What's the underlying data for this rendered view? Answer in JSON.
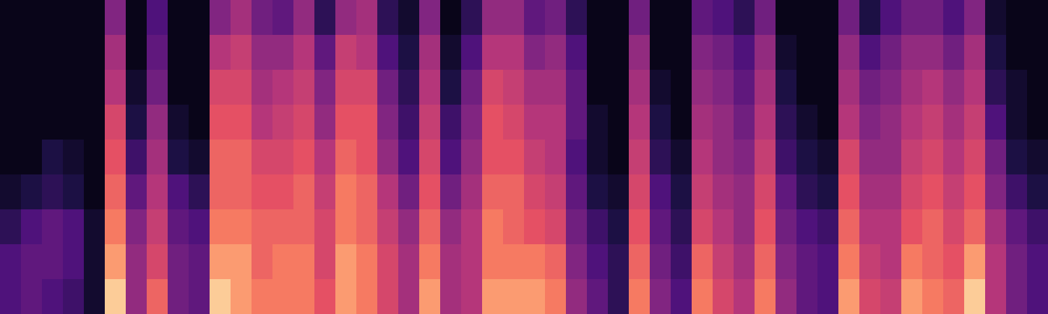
{
  "chart_data": {
    "type": "heatmap",
    "tick_labels": false,
    "zlim": [
      0,
      1
    ],
    "cells": [
      [
        0.05,
        0.05,
        0.05,
        0.05,
        0.05,
        0.1,
        0.2,
        0.3,
        0.3
      ],
      [
        0.05,
        0.05,
        0.05,
        0.05,
        0.05,
        0.15,
        0.3,
        0.35,
        0.35
      ],
      [
        0.05,
        0.05,
        0.05,
        0.05,
        0.15,
        0.2,
        0.35,
        0.35,
        0.3
      ],
      [
        0.05,
        0.05,
        0.05,
        0.05,
        0.1,
        0.15,
        0.3,
        0.3,
        0.25
      ],
      [
        0.05,
        0.05,
        0.05,
        0.05,
        0.05,
        0.05,
        0.1,
        0.1,
        0.1
      ],
      [
        0.45,
        0.55,
        0.6,
        0.7,
        0.75,
        0.8,
        0.85,
        0.9,
        0.95
      ],
      [
        0.05,
        0.05,
        0.1,
        0.15,
        0.25,
        0.35,
        0.45,
        0.5,
        0.5
      ],
      [
        0.3,
        0.35,
        0.4,
        0.5,
        0.55,
        0.6,
        0.65,
        0.7,
        0.8
      ],
      [
        0.05,
        0.05,
        0.05,
        0.1,
        0.15,
        0.3,
        0.35,
        0.4,
        0.4
      ],
      [
        0.05,
        0.05,
        0.05,
        0.05,
        0.1,
        0.2,
        0.3,
        0.35,
        0.35
      ],
      [
        0.45,
        0.6,
        0.7,
        0.75,
        0.8,
        0.8,
        0.85,
        0.9,
        0.95
      ],
      [
        0.55,
        0.65,
        0.7,
        0.75,
        0.8,
        0.8,
        0.85,
        0.9,
        0.9
      ],
      [
        0.4,
        0.5,
        0.55,
        0.6,
        0.7,
        0.75,
        0.8,
        0.8,
        0.85
      ],
      [
        0.35,
        0.5,
        0.6,
        0.65,
        0.7,
        0.75,
        0.8,
        0.85,
        0.85
      ],
      [
        0.5,
        0.6,
        0.65,
        0.7,
        0.75,
        0.8,
        0.8,
        0.85,
        0.85
      ],
      [
        0.2,
        0.35,
        0.45,
        0.5,
        0.6,
        0.65,
        0.7,
        0.7,
        0.75
      ],
      [
        0.5,
        0.65,
        0.7,
        0.75,
        0.8,
        0.85,
        0.85,
        0.9,
        0.9
      ],
      [
        0.55,
        0.6,
        0.7,
        0.75,
        0.75,
        0.8,
        0.8,
        0.85,
        0.85
      ],
      [
        0.2,
        0.3,
        0.4,
        0.45,
        0.5,
        0.6,
        0.65,
        0.7,
        0.7
      ],
      [
        0.1,
        0.15,
        0.2,
        0.25,
        0.3,
        0.4,
        0.5,
        0.55,
        0.55
      ],
      [
        0.45,
        0.55,
        0.6,
        0.65,
        0.7,
        0.75,
        0.8,
        0.85,
        0.9
      ],
      [
        0.05,
        0.1,
        0.15,
        0.25,
        0.3,
        0.4,
        0.5,
        0.55,
        0.55
      ],
      [
        0.2,
        0.3,
        0.4,
        0.45,
        0.5,
        0.55,
        0.6,
        0.6,
        0.6
      ],
      [
        0.5,
        0.6,
        0.7,
        0.75,
        0.75,
        0.8,
        0.85,
        0.85,
        0.9
      ],
      [
        0.5,
        0.6,
        0.65,
        0.7,
        0.75,
        0.8,
        0.8,
        0.85,
        0.9
      ],
      [
        0.35,
        0.45,
        0.55,
        0.6,
        0.65,
        0.7,
        0.75,
        0.85,
        0.9
      ],
      [
        0.4,
        0.5,
        0.55,
        0.6,
        0.6,
        0.65,
        0.7,
        0.8,
        0.85
      ],
      [
        0.2,
        0.3,
        0.35,
        0.35,
        0.3,
        0.35,
        0.4,
        0.45,
        0.5
      ],
      [
        0.05,
        0.05,
        0.05,
        0.1,
        0.1,
        0.15,
        0.25,
        0.3,
        0.35
      ],
      [
        0.05,
        0.05,
        0.05,
        0.05,
        0.05,
        0.1,
        0.15,
        0.2,
        0.2
      ],
      [
        0.4,
        0.5,
        0.55,
        0.6,
        0.65,
        0.7,
        0.75,
        0.8,
        0.85
      ],
      [
        0.05,
        0.05,
        0.1,
        0.15,
        0.2,
        0.3,
        0.35,
        0.4,
        0.45
      ],
      [
        0.05,
        0.05,
        0.05,
        0.05,
        0.1,
        0.15,
        0.2,
        0.25,
        0.3
      ],
      [
        0.35,
        0.45,
        0.5,
        0.55,
        0.6,
        0.65,
        0.7,
        0.8,
        0.85
      ],
      [
        0.3,
        0.4,
        0.45,
        0.5,
        0.5,
        0.55,
        0.6,
        0.65,
        0.7
      ],
      [
        0.2,
        0.3,
        0.35,
        0.4,
        0.45,
        0.5,
        0.5,
        0.55,
        0.6
      ],
      [
        0.4,
        0.5,
        0.55,
        0.6,
        0.65,
        0.7,
        0.75,
        0.8,
        0.85
      ],
      [
        0.05,
        0.1,
        0.15,
        0.2,
        0.25,
        0.35,
        0.4,
        0.45,
        0.5
      ],
      [
        0.05,
        0.05,
        0.05,
        0.1,
        0.15,
        0.2,
        0.3,
        0.35,
        0.35
      ],
      [
        0.05,
        0.05,
        0.05,
        0.05,
        0.1,
        0.15,
        0.25,
        0.3,
        0.3
      ],
      [
        0.4,
        0.5,
        0.55,
        0.6,
        0.7,
        0.75,
        0.8,
        0.85,
        0.9
      ],
      [
        0.15,
        0.3,
        0.4,
        0.45,
        0.5,
        0.55,
        0.6,
        0.65,
        0.7
      ],
      [
        0.3,
        0.4,
        0.45,
        0.5,
        0.5,
        0.55,
        0.6,
        0.6,
        0.65
      ],
      [
        0.4,
        0.5,
        0.55,
        0.6,
        0.65,
        0.7,
        0.75,
        0.85,
        0.9
      ],
      [
        0.4,
        0.5,
        0.6,
        0.65,
        0.7,
        0.75,
        0.8,
        0.8,
        0.85
      ],
      [
        0.3,
        0.4,
        0.5,
        0.55,
        0.6,
        0.65,
        0.7,
        0.75,
        0.8
      ],
      [
        0.45,
        0.55,
        0.6,
        0.65,
        0.7,
        0.75,
        0.8,
        0.9,
        0.95
      ],
      [
        0.1,
        0.15,
        0.2,
        0.3,
        0.4,
        0.45,
        0.55,
        0.6,
        0.6
      ],
      [
        0.05,
        0.05,
        0.1,
        0.1,
        0.15,
        0.25,
        0.35,
        0.4,
        0.4
      ],
      [
        0.05,
        0.05,
        0.05,
        0.05,
        0.1,
        0.15,
        0.25,
        0.3,
        0.3
      ]
    ]
  }
}
